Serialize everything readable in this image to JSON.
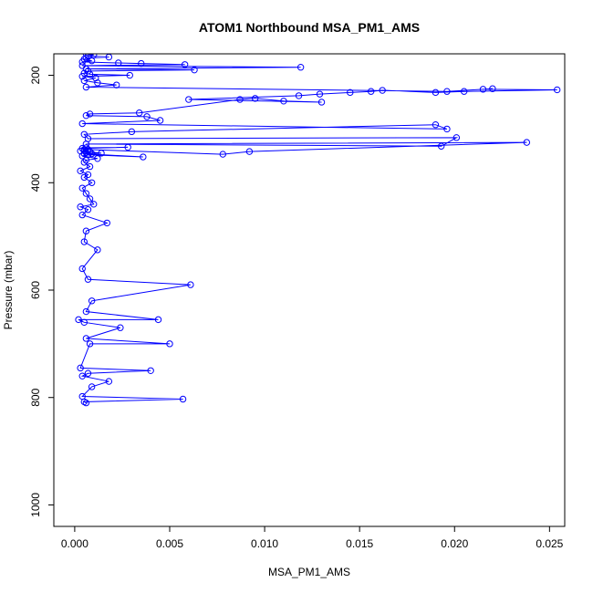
{
  "chart_data": {
    "type": "scatter",
    "title": "ATOM1 Northbound MSA_PM1_AMS",
    "xlabel": "MSA_PM1_AMS",
    "ylabel": "Pressure (mbar)",
    "xlim": [
      -0.0011,
      0.0258
    ],
    "ylim": [
      1040,
      160
    ],
    "y_reversed": true,
    "grid": false,
    "connected": true,
    "marker": "open-circle",
    "color": "#0000ff",
    "x_ticks": [
      0.0,
      0.005,
      0.01,
      0.015,
      0.02,
      0.025
    ],
    "x_tick_labels": [
      "0.000",
      "0.005",
      "0.010",
      "0.015",
      "0.020",
      "0.025"
    ],
    "y_ticks": [
      200,
      400,
      600,
      800,
      1000
    ],
    "y_tick_labels": [
      "200",
      "400",
      "600",
      "800",
      "1000"
    ],
    "series": [
      {
        "x": [
          0.0006,
          0.0005,
          0.0057,
          0.0004,
          0.0009,
          0.0018,
          0.0004,
          0.0007,
          0.004,
          0.0003,
          0.0008,
          0.005,
          0.0006,
          0.0024,
          0.0005,
          0.0002,
          0.0044,
          0.0006,
          0.0009,
          0.0061,
          0.0007,
          0.0004,
          0.0012,
          0.0005,
          0.0006,
          0.0017,
          0.0004,
          0.0007,
          0.0003,
          0.001,
          0.0008,
          0.0006,
          0.0004,
          0.0009,
          0.0005,
          0.0007,
          0.0003,
          0.0008,
          0.0005,
          0.0006,
          0.0012,
          0.0004,
          0.0007,
          0.0036,
          0.0005,
          0.0014,
          0.0003,
          0.0008,
          0.0006,
          0.0009,
          0.0005,
          0.0007,
          0.0004,
          0.0028,
          0.0006,
          0.0005,
          0.0078,
          0.0092,
          0.0238,
          0.0006,
          0.0193,
          0.0201,
          0.0007,
          0.0005,
          0.003,
          0.019,
          0.0196,
          0.0004,
          0.0045,
          0.0038,
          0.0006,
          0.0008,
          0.0034,
          0.0087,
          0.0095,
          0.011,
          0.013,
          0.006,
          0.0118,
          0.0129,
          0.0145,
          0.0156,
          0.0162,
          0.019,
          0.0205,
          0.0254,
          0.0215,
          0.022,
          0.0196,
          0.0006,
          0.0022,
          0.0012,
          0.0005,
          0.0011,
          0.0004,
          0.0029,
          0.0008,
          0.0005,
          0.0007,
          0.0063,
          0.0006,
          0.0119,
          0.0004,
          0.0058,
          0.0035,
          0.0023,
          0.0004,
          0.0009,
          0.0005,
          0.0006,
          0.0018,
          0.0007,
          0.001,
          0.0006
        ],
        "y": [
          810,
          808,
          803,
          798,
          780,
          770,
          760,
          755,
          750,
          745,
          700,
          700,
          690,
          670,
          660,
          655,
          655,
          640,
          620,
          590,
          580,
          560,
          525,
          510,
          490,
          475,
          460,
          450,
          445,
          440,
          430,
          420,
          410,
          400,
          390,
          385,
          378,
          370,
          362,
          358,
          355,
          350,
          348,
          352,
          346,
          345,
          341,
          342,
          344,
          346,
          340,
          338,
          336,
          334,
          335,
          338,
          347,
          342,
          325,
          328,
          332,
          316,
          318,
          310,
          305,
          292,
          300,
          290,
          284,
          277,
          275,
          272,
          270,
          245,
          243,
          248,
          250,
          245,
          238,
          235,
          232,
          230,
          228,
          232,
          230,
          227,
          226,
          225,
          230,
          222,
          218,
          214,
          210,
          205,
          202,
          200,
          198,
          196,
          192,
          190,
          188,
          185,
          182,
          180,
          178,
          177,
          175,
          173,
          170,
          168,
          166,
          164,
          162,
          160
        ]
      }
    ]
  }
}
